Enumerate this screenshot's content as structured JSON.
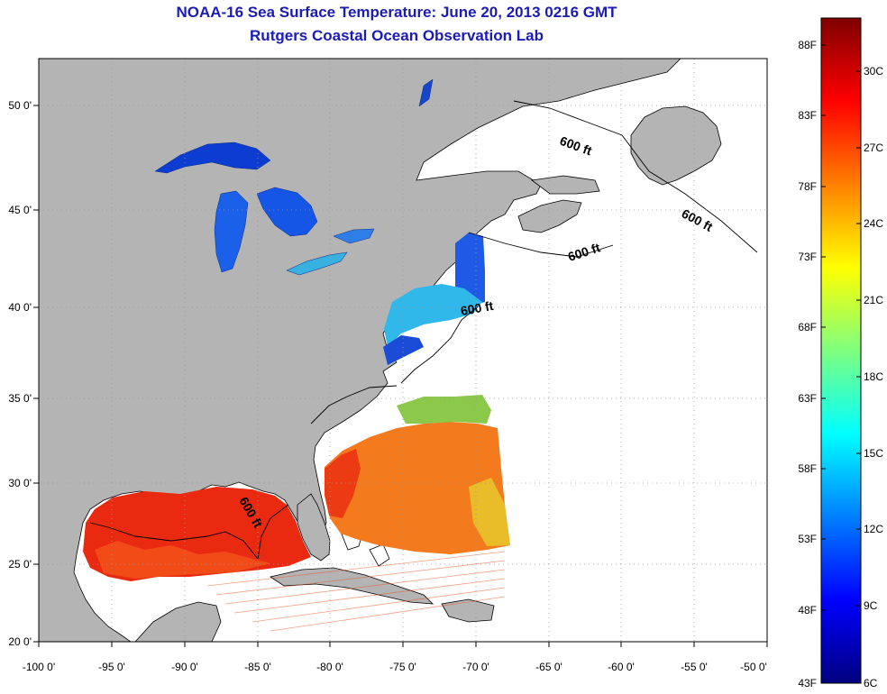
{
  "title": {
    "line1": "NOAA-16 Sea Surface Temperature:  June 20, 2013 0216 GMT",
    "line2": "Rutgers Coastal Ocean Observation Lab"
  },
  "map": {
    "lon_ticks": [
      "-100 0'",
      "-95 0'",
      "-90 0'",
      "-85 0'",
      "-80 0'",
      "-75 0'",
      "-70 0'",
      "-65 0'",
      "-60 0'",
      "-55 0'",
      "-50 0'"
    ],
    "lat_ticks": [
      "50 0'",
      "45 0'",
      "40 0'",
      "35 0'",
      "30 0'",
      "25 0'",
      "20 0'"
    ],
    "contour_labels": [
      "600 ft",
      "600 ft",
      "600 ft",
      "600 ft",
      "600 ft"
    ],
    "colors": {
      "land": "#b4b4b4",
      "ocean_nodata": "#ffffff",
      "grid": "#9a9a9a"
    }
  },
  "colorbar": {
    "fahrenheit_labels": [
      "88F",
      "83F",
      "78F",
      "73F",
      "68F",
      "63F",
      "58F",
      "53F",
      "48F",
      "43F"
    ],
    "celsius_labels": [
      "30C",
      "27C",
      "24C",
      "21C",
      "18C",
      "15C",
      "12C",
      "9C",
      "6C"
    ],
    "range_celsius": [
      6,
      31.5
    ],
    "colormap": "jet"
  }
}
